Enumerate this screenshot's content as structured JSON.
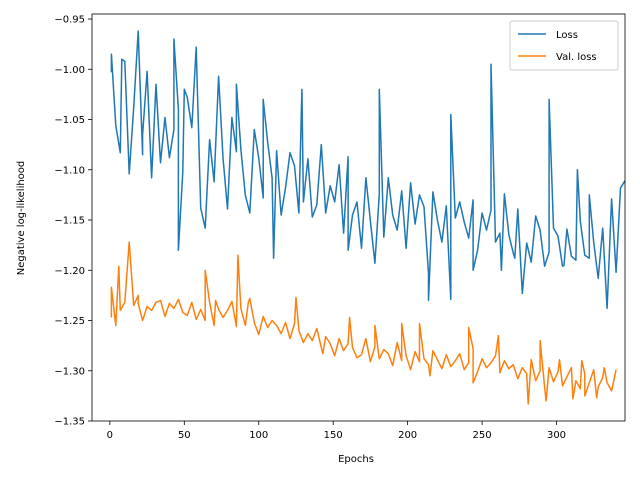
{
  "chart_data": {
    "type": "line",
    "title": "",
    "xlabel": "Epochs",
    "ylabel": "Negative log-likelihood",
    "xlim": [
      -12,
      346
    ],
    "ylim": [
      -1.35,
      -0.945
    ],
    "xticks": [
      0,
      50,
      100,
      150,
      200,
      250,
      300
    ],
    "yticks": [
      -1.35,
      -1.3,
      -1.25,
      -1.2,
      -1.15,
      -1.1,
      -1.05,
      -1.0,
      -0.95
    ],
    "ytick_labels": [
      "−1.35",
      "−1.30",
      "−1.25",
      "−1.20",
      "−1.15",
      "−1.10",
      "−1.05",
      "−1.00",
      "−0.95"
    ],
    "grid": false,
    "legend_position": "top-right",
    "x_start": 1,
    "x_step": 3,
    "series": [
      {
        "name": "Loss",
        "color": "#1f77b4",
        "values": [
          -1.003,
          -1.056,
          -1.083,
          -0.992,
          -1.104,
          -1.038,
          -0.962,
          -1.085,
          -1.002,
          -1.108,
          -1.015,
          -1.093,
          -1.048,
          -1.088,
          -1.06,
          -1.04,
          -1.102,
          -1.028,
          -1.058,
          -0.978,
          -1.138,
          -1.158,
          -1.07,
          -1.112,
          -1.007,
          -1.088,
          -1.139,
          -1.048,
          -1.082,
          -1.08,
          -1.125,
          -1.143,
          -1.06,
          -1.088,
          -1.128,
          -1.073,
          -1.108,
          -1.081,
          -1.145,
          -1.118,
          -1.083,
          -1.096,
          -1.143,
          -1.132,
          -1.089,
          -1.147,
          -1.135,
          -1.075,
          -1.143,
          -1.116,
          -1.132,
          -1.095,
          -1.163,
          -1.087,
          -1.145,
          -1.132,
          -1.178,
          -1.108,
          -1.151,
          -1.193,
          -1.124,
          -1.167,
          -1.108,
          -1.145,
          -1.16,
          -1.121,
          -1.178,
          -1.113,
          -1.154,
          -1.125,
          -1.137,
          -1.203,
          -1.122,
          -1.15,
          -1.172,
          -1.136,
          -1.229,
          -1.148,
          -1.132,
          -1.152,
          -1.168,
          -1.13,
          -1.18,
          -1.143,
          -1.16,
          -1.14,
          -1.172,
          -1.163,
          -1.124,
          -1.165,
          -1.183,
          -1.139,
          -1.223,
          -1.173,
          -1.192,
          -1.146,
          -1.16,
          -1.196,
          -1.182,
          -1.158,
          -1.166,
          -1.196,
          -1.159,
          -1.186,
          -1.19,
          -1.151,
          -1.185,
          -1.188,
          -1.172,
          -1.208,
          -1.158,
          -1.238,
          -1.129,
          -1.202,
          -1.118,
          -1.111
        ],
        "spikes": [
          [
            1,
            -0.985
          ],
          [
            8,
            -0.99
          ],
          [
            22,
            -1.065
          ],
          [
            43,
            -0.97
          ],
          [
            46,
            -1.18
          ],
          [
            50,
            -1.02
          ],
          [
            85,
            -1.015
          ],
          [
            103,
            -1.03
          ],
          [
            110,
            -1.188
          ],
          [
            129,
            -1.02
          ],
          [
            160,
            -1.18
          ],
          [
            181,
            -1.02
          ],
          [
            214,
            -1.23
          ],
          [
            229,
            -1.045
          ],
          [
            244,
            -1.2
          ],
          [
            256,
            -0.995
          ],
          [
            263,
            -1.2
          ],
          [
            272,
            -1.188
          ],
          [
            295,
            -1.03
          ],
          [
            305,
            -1.195
          ],
          [
            314,
            -1.1
          ],
          [
            322,
            -1.125
          ]
        ]
      },
      {
        "name": "Val. loss",
        "color": "#ff7f0e",
        "values": [
          -1.247,
          -1.255,
          -1.24,
          -1.232,
          -1.172,
          -1.235,
          -1.225,
          -1.25,
          -1.236,
          -1.24,
          -1.232,
          -1.23,
          -1.246,
          -1.233,
          -1.238,
          -1.229,
          -1.242,
          -1.245,
          -1.232,
          -1.249,
          -1.239,
          -1.25,
          -1.232,
          -1.255,
          -1.239,
          -1.247,
          -1.24,
          -1.231,
          -1.256,
          -1.238,
          -1.255,
          -1.228,
          -1.252,
          -1.264,
          -1.246,
          -1.257,
          -1.25,
          -1.255,
          -1.263,
          -1.252,
          -1.268,
          -1.253,
          -1.26,
          -1.272,
          -1.263,
          -1.27,
          -1.258,
          -1.277,
          -1.266,
          -1.273,
          -1.285,
          -1.268,
          -1.28,
          -1.273,
          -1.277,
          -1.287,
          -1.284,
          -1.268,
          -1.291,
          -1.276,
          -1.288,
          -1.279,
          -1.283,
          -1.295,
          -1.272,
          -1.29,
          -1.285,
          -1.299,
          -1.281,
          -1.291,
          -1.288,
          -1.294,
          -1.28,
          -1.289,
          -1.298,
          -1.284,
          -1.296,
          -1.29,
          -1.283,
          -1.299,
          -1.292,
          -1.278,
          -1.301,
          -1.288,
          -1.297,
          -1.292,
          -1.285,
          -1.302,
          -1.29,
          -1.298,
          -1.294,
          -1.308,
          -1.297,
          -1.303,
          -1.289,
          -1.31,
          -1.3,
          -1.316,
          -1.297,
          -1.311,
          -1.301,
          -1.315,
          -1.306,
          -1.297,
          -1.31,
          -1.318,
          -1.303,
          -1.312,
          -1.299,
          -1.316,
          -1.307,
          -1.312,
          -1.32,
          -1.299
        ],
        "spikes": [
          [
            1,
            -1.217
          ],
          [
            4,
            -1.255
          ],
          [
            6,
            -1.196
          ],
          [
            13,
            -1.172
          ],
          [
            19,
            -1.233
          ],
          [
            64,
            -1.2
          ],
          [
            71,
            -1.23
          ],
          [
            86,
            -1.185
          ],
          [
            93,
            -1.232
          ],
          [
            125,
            -1.227
          ],
          [
            143,
            -1.283
          ],
          [
            161,
            -1.247
          ],
          [
            178,
            -1.255
          ],
          [
            196,
            -1.253
          ],
          [
            208,
            -1.253
          ],
          [
            215,
            -1.305
          ],
          [
            241,
            -1.257
          ],
          [
            244,
            -1.312
          ],
          [
            261,
            -1.265
          ],
          [
            281,
            -1.333
          ],
          [
            289,
            -1.27
          ],
          [
            293,
            -1.33
          ],
          [
            302,
            -1.289
          ],
          [
            311,
            -1.328
          ],
          [
            317,
            -1.29
          ],
          [
            319,
            -1.325
          ],
          [
            327,
            -1.327
          ],
          [
            332,
            -1.297
          ]
        ]
      }
    ]
  }
}
